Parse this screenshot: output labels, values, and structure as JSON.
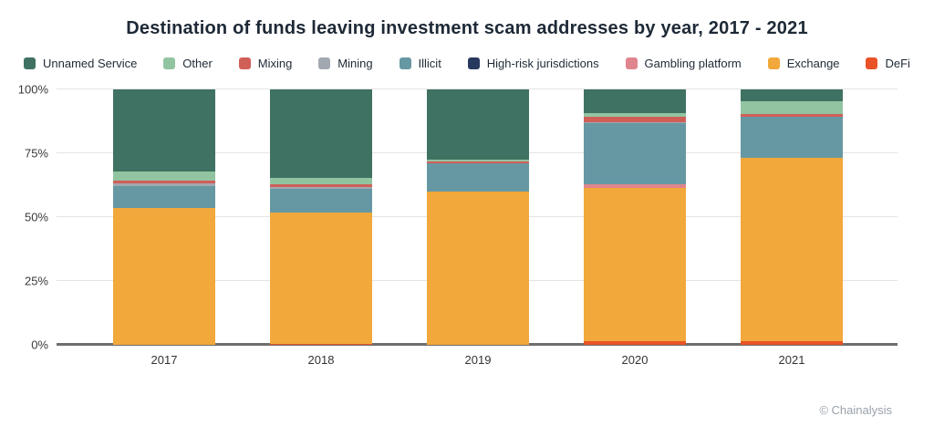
{
  "title": "Destination of funds leaving investment scam addresses by year, 2017 - 2021",
  "credit": "© Chainalysis",
  "colors": {
    "unnamed_service": "#3F7262",
    "other": "#93C4A1",
    "mixing": "#D05F58",
    "mining": "#A2A8B0",
    "illicit": "#6698A3",
    "high_risk": "#28395E",
    "gambling": "#E0858E",
    "exchange": "#F2A83B",
    "defi": "#E95327",
    "grid": "#e4e4e4",
    "baseline": "#6e6e6e"
  },
  "legend": {
    "items": [
      {
        "label": "Unnamed Service",
        "color": "#3F7262"
      },
      {
        "label": "Other",
        "color": "#93C4A1"
      },
      {
        "label": "Mixing",
        "color": "#D05F58"
      },
      {
        "label": "Mining",
        "color": "#A2A8B0"
      },
      {
        "label": "Illicit",
        "color": "#6698A3"
      },
      {
        "label": "High-risk jurisdictions",
        "color": "#28395E"
      },
      {
        "label": "Gambling platform",
        "color": "#E0858E"
      },
      {
        "label": "Exchange",
        "color": "#F2A83B"
      },
      {
        "label": "DeFi",
        "color": "#E95327"
      }
    ]
  },
  "chart_data": {
    "type": "bar",
    "stacked": true,
    "title": "Destination of funds leaving investment scam addresses by year, 2017 - 2021",
    "xlabel": "",
    "ylabel": "",
    "ylim": [
      0,
      100
    ],
    "y_ticks": [
      "0%",
      "25%",
      "50%",
      "75%",
      "100%"
    ],
    "grid": true,
    "legend_position": "top",
    "categories": [
      "2017",
      "2018",
      "2019",
      "2020",
      "2021"
    ],
    "series": [
      {
        "name": "DeFi",
        "color": "#E95327",
        "values": [
          0,
          0.5,
          0,
          1.6,
          1.6
        ]
      },
      {
        "name": "Exchange",
        "color": "#F2A83B",
        "values": [
          53.5,
          51.4,
          60.0,
          60.0,
          71.6
        ]
      },
      {
        "name": "Gambling platform",
        "color": "#E0858E",
        "values": [
          0,
          0,
          0,
          1.4,
          0
        ]
      },
      {
        "name": "High-risk jurisdictions",
        "color": "#28395E",
        "values": [
          0,
          0,
          0,
          0,
          0
        ]
      },
      {
        "name": "Illicit",
        "color": "#6698A3",
        "values": [
          8.8,
          9.3,
          11.0,
          23.8,
          16.2
        ]
      },
      {
        "name": "Mining",
        "color": "#A2A8B0",
        "values": [
          1.1,
          0.7,
          0,
          0.5,
          0
        ]
      },
      {
        "name": "Mixing",
        "color": "#D05F58",
        "values": [
          0.9,
          1.1,
          0.9,
          2.1,
          1.0
        ]
      },
      {
        "name": "Other",
        "color": "#93C4A1",
        "values": [
          3.7,
          2.2,
          0.5,
          1.4,
          5.1
        ]
      },
      {
        "name": "Unnamed Service",
        "color": "#3F7262",
        "values": [
          32.0,
          34.8,
          27.6,
          9.2,
          4.5
        ]
      }
    ]
  }
}
